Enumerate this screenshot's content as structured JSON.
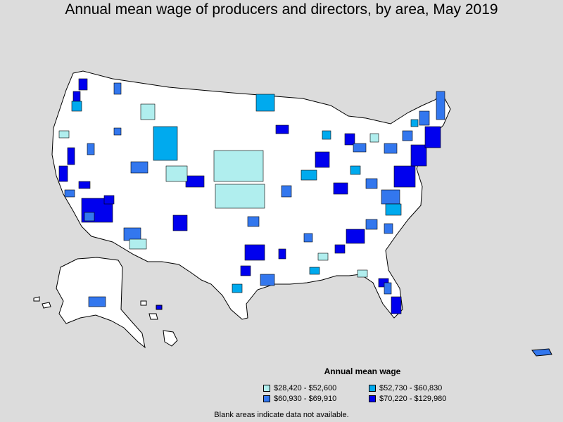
{
  "title": "Annual mean wage of producers and directors, by area, May 2019",
  "legend": {
    "title": "Annual mean wage",
    "items": [
      {
        "label": "$28,420 - $52,600",
        "color": "#b0eeee"
      },
      {
        "label": "$52,730 - $60,830",
        "color": "#00aaee"
      },
      {
        "label": "$60,930 - $69,910",
        "color": "#3377ee"
      },
      {
        "label": "$70,220 - $129,980",
        "color": "#0000ee"
      }
    ]
  },
  "note": "Blank areas indicate data not available.",
  "colors": {
    "background": "#dcdcdc",
    "no_data": "#ffffff",
    "border": "#000000"
  }
}
